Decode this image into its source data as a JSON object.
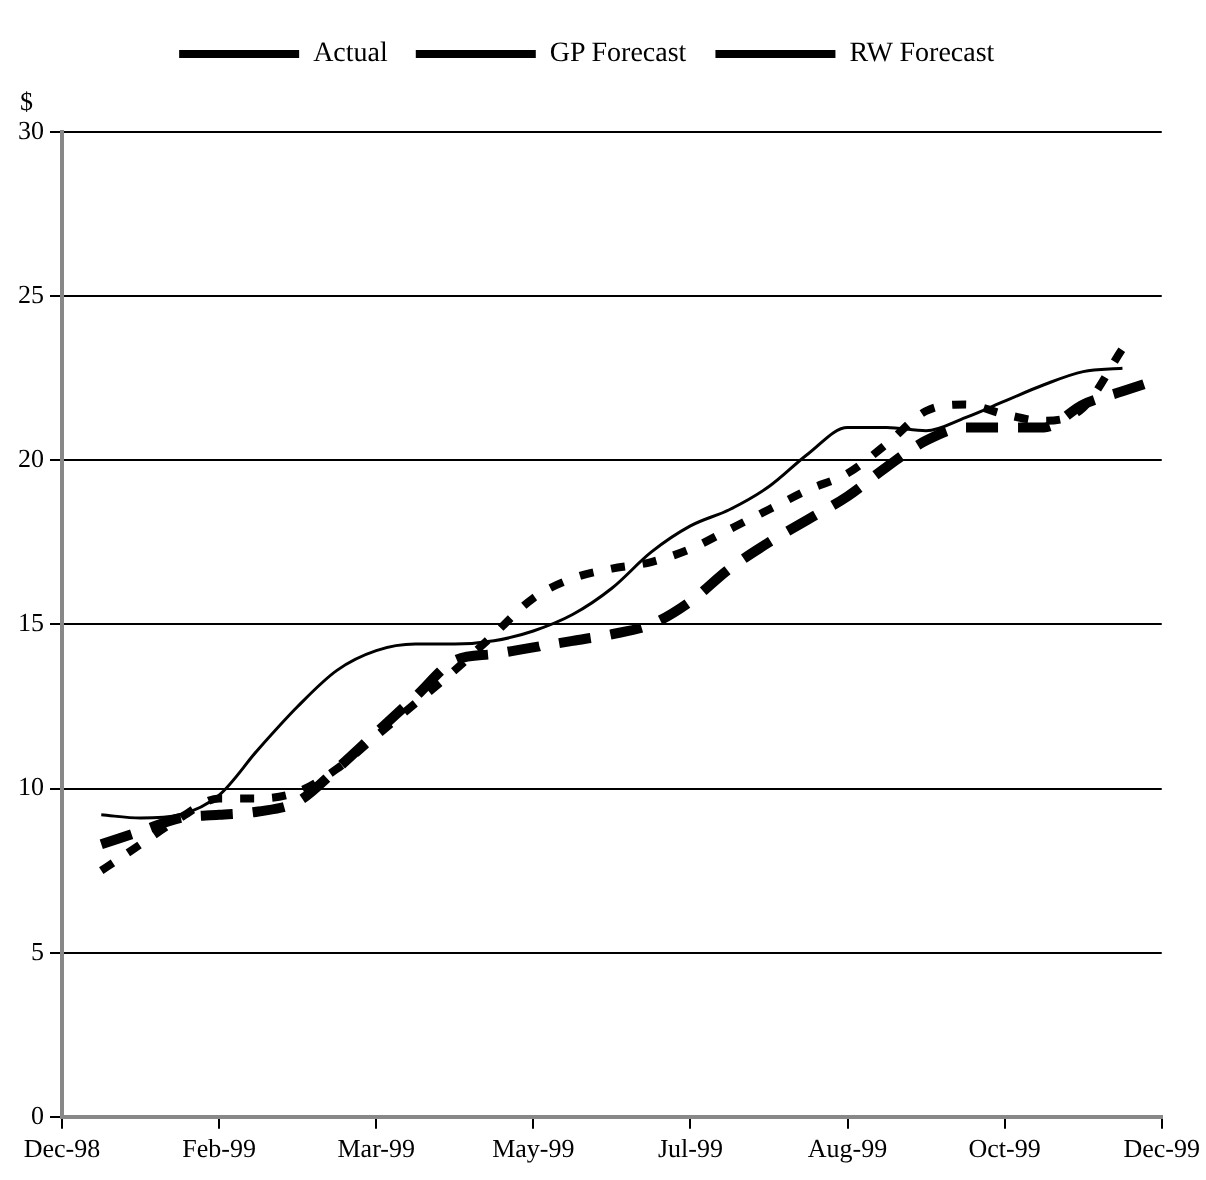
{
  "chart_data": {
    "type": "line",
    "ylabel": "$",
    "categories": [
      "Dec-98",
      null,
      null,
      null,
      "Feb-99",
      null,
      null,
      null,
      "Mar-99",
      null,
      null,
      null,
      "May-99",
      null,
      null,
      null,
      "Jul-99",
      null,
      null,
      null,
      "Aug-99",
      null,
      null,
      null,
      "Oct-99",
      null,
      null,
      null,
      "Dec-99"
    ],
    "ylim": [
      0,
      30
    ],
    "yticks": [
      0,
      5,
      10,
      15,
      20,
      25,
      30
    ],
    "grid": "y",
    "legend": "top",
    "marker": "none",
    "series": [
      {
        "name": "Actual",
        "color": "#000000",
        "line_style": "solid",
        "values": [
          null,
          9.2,
          9.1,
          9.2,
          9.8,
          11.2,
          12.5,
          13.6,
          14.2,
          14.4,
          14.4,
          14.5,
          14.8,
          15.3,
          16.1,
          17.2,
          18.0,
          18.5,
          19.2,
          20.2,
          21.0,
          21.0,
          20.9,
          21.3,
          21.8,
          22.3,
          22.7,
          22.8,
          null
        ]
      },
      {
        "name": "GP Forecast",
        "color": "#000000",
        "line_style": "dotted",
        "values": [
          null,
          7.5,
          8.3,
          9.1,
          9.7,
          9.7,
          9.9,
          10.6,
          11.6,
          12.6,
          13.6,
          14.7,
          15.8,
          16.4,
          16.7,
          16.9,
          17.3,
          17.9,
          18.5,
          19.1,
          19.6,
          20.5,
          21.5,
          21.7,
          21.4,
          21.2,
          21.6,
          23.4,
          null
        ]
      },
      {
        "name": "RW Forecast",
        "color": "#000000",
        "line_style": "dashed",
        "values": [
          null,
          8.3,
          8.7,
          9.1,
          9.2,
          9.3,
          9.6,
          10.6,
          11.7,
          12.8,
          13.9,
          14.1,
          14.3,
          14.5,
          14.7,
          15.0,
          15.7,
          16.7,
          17.5,
          18.2,
          18.9,
          19.8,
          20.6,
          21.0,
          21.0,
          21.0,
          21.7,
          22.1,
          22.5
        ]
      }
    ]
  }
}
